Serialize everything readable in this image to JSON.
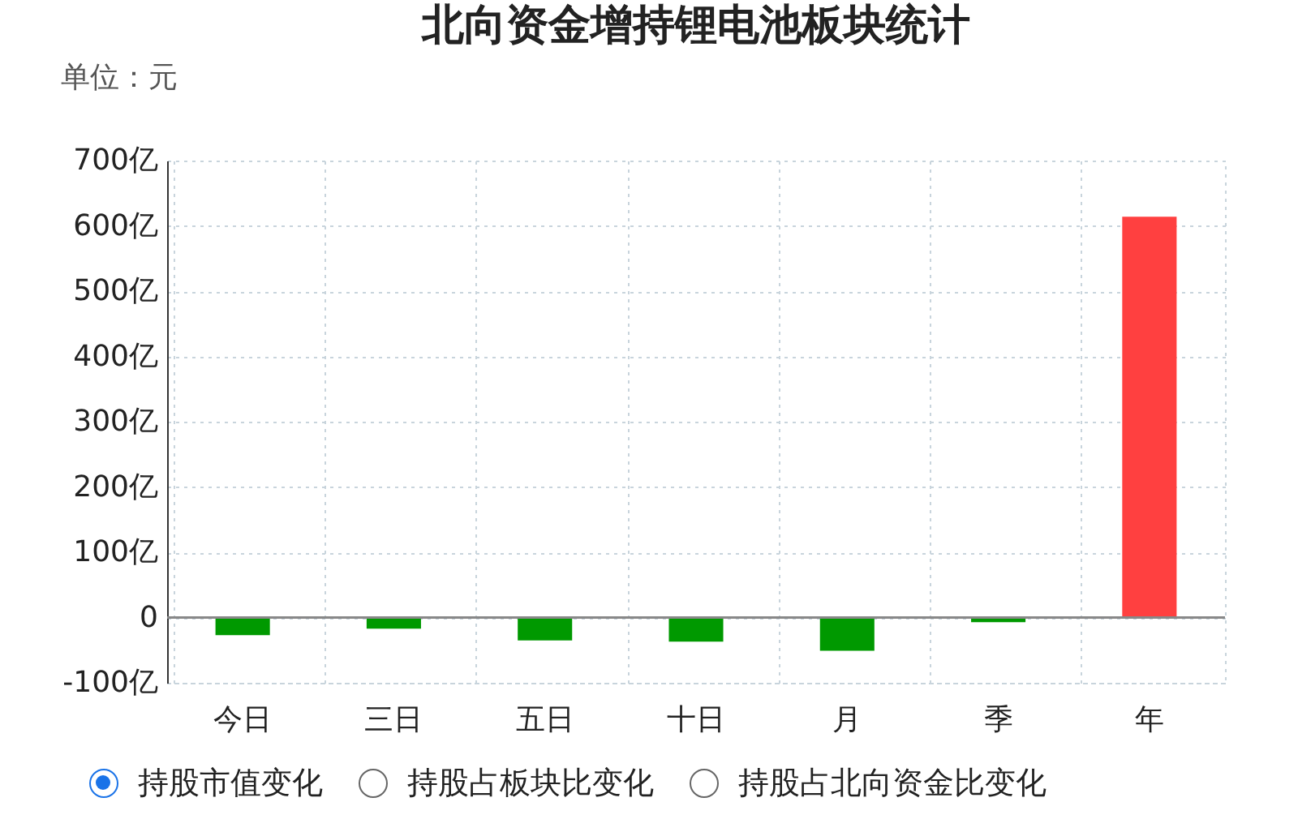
{
  "chart_data": {
    "type": "bar",
    "title": "北向资金增持锂电池板块统计",
    "ylabel": "单位：元",
    "categories": [
      "今日",
      "三日",
      "五日",
      "十日",
      "月",
      "季",
      "年"
    ],
    "values": [
      -27,
      -17,
      -35,
      -37,
      -51,
      -7,
      614
    ],
    "colors": [
      "#009900",
      "#009900",
      "#009900",
      "#009900",
      "#009900",
      "#009900",
      "#ff4040"
    ],
    "ylim": [
      -100,
      700
    ],
    "yticks": [
      {
        "value": -100,
        "label": "-100亿"
      },
      0,
      {
        "value": 100,
        "label": "100亿"
      },
      {
        "value": 200,
        "label": "200亿"
      },
      {
        "value": 300,
        "label": "300亿"
      },
      {
        "value": 400,
        "label": "400亿"
      },
      {
        "value": 500,
        "label": "500亿"
      },
      {
        "value": 600,
        "label": "600亿"
      },
      {
        "value": 700,
        "label": "700亿"
      }
    ],
    "grid": true,
    "annotations": [
      "持股市值变化",
      "持股占板块比变化",
      "持股占北向资金比变化"
    ]
  }
}
